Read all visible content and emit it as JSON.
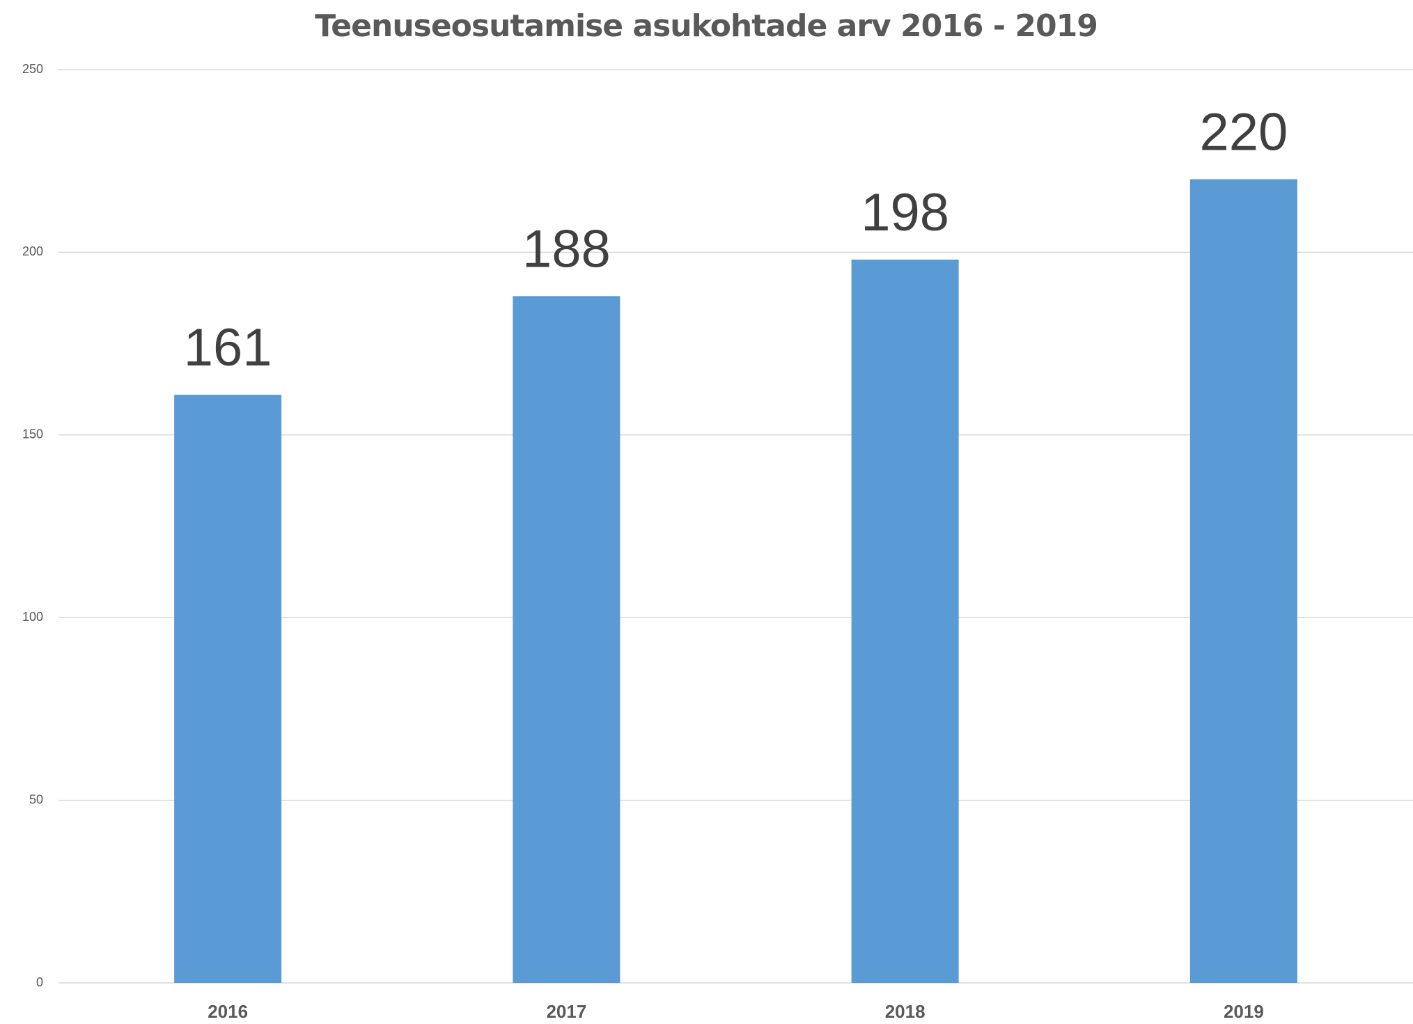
{
  "chart_data": {
    "type": "bar",
    "title": "Teenuseosutamise asukohtade arv 2016 - 2019",
    "categories": [
      "2016",
      "2017",
      "2018",
      "2019"
    ],
    "values": [
      161,
      188,
      198,
      220
    ],
    "color": "#5b9bd5",
    "ylim": [
      0,
      250
    ],
    "yticks": [
      0,
      50,
      100,
      150,
      200,
      250
    ],
    "grid": true,
    "data_labels": true
  }
}
